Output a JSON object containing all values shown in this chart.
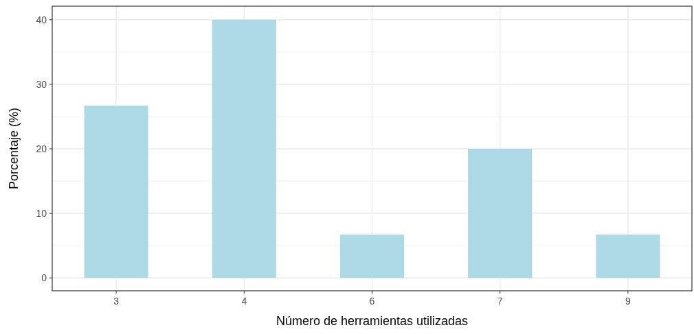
{
  "chart_data": {
    "type": "bar",
    "xlabel": "Número de herramientas utilizadas",
    "ylabel": "Porcentaje (%)",
    "categories": [
      "3",
      "4",
      "6",
      "7",
      "9"
    ],
    "values": [
      26.7,
      40,
      6.7,
      20,
      6.7
    ],
    "color": "#add8e6",
    "ylim": [
      -2,
      42.1
    ],
    "yticks": [
      0,
      10,
      20,
      30,
      40
    ],
    "grid": true
  }
}
